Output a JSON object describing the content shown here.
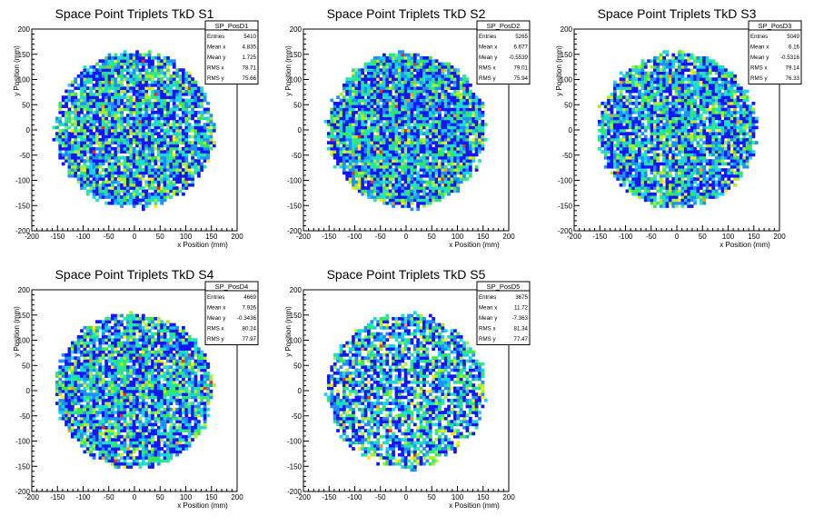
{
  "chart_data": [
    {
      "type": "heatmap",
      "title": "Space Point Triplets TkD S1",
      "xlabel": "x Position (mm)",
      "ylabel": "y Position (mm)",
      "xlim": [
        -200,
        200
      ],
      "ylim": [
        -200,
        200
      ],
      "xticks": [
        -200,
        -150,
        -100,
        -50,
        0,
        50,
        100,
        150,
        200
      ],
      "yticks": [
        -200,
        -150,
        -100,
        -50,
        0,
        50,
        100,
        150,
        200
      ],
      "bin_size": 6,
      "region_radius": 160,
      "density": 0.9,
      "stats": {
        "name": "SP_PosD1",
        "rows": [
          {
            "label": "Entries",
            "value": "5410"
          },
          {
            "label": "Mean x",
            "value": "4.835"
          },
          {
            "label": "Mean y",
            "value": "1.725"
          },
          {
            "label": "RMS x",
            "value": "78.71"
          },
          {
            "label": "RMS y",
            "value": "75.66"
          }
        ]
      }
    },
    {
      "type": "heatmap",
      "title": "Space Point Triplets TkD S2",
      "xlabel": "x Position (mm)",
      "ylabel": "y Position (mm)",
      "xlim": [
        -200,
        200
      ],
      "ylim": [
        -200,
        200
      ],
      "xticks": [
        -200,
        -150,
        -100,
        -50,
        0,
        50,
        100,
        150,
        200
      ],
      "yticks": [
        -200,
        -150,
        -100,
        -50,
        0,
        50,
        100,
        150,
        200
      ],
      "bin_size": 6,
      "region_radius": 160,
      "density": 0.95,
      "stats": {
        "name": "SP_PosD2",
        "rows": [
          {
            "label": "Entries",
            "value": "5265"
          },
          {
            "label": "Mean x",
            "value": "6.677"
          },
          {
            "label": "Mean y",
            "value": "-0.5539"
          },
          {
            "label": "RMS x",
            "value": "79.01"
          },
          {
            "label": "RMS y",
            "value": "75.94"
          }
        ]
      }
    },
    {
      "type": "heatmap",
      "title": "Space Point Triplets TkD S3",
      "xlabel": "x Position (mm)",
      "ylabel": "y Position (mm)",
      "xlim": [
        -200,
        200
      ],
      "ylim": [
        -200,
        200
      ],
      "xticks": [
        -200,
        -150,
        -100,
        -50,
        0,
        50,
        100,
        150,
        200
      ],
      "yticks": [
        -200,
        -150,
        -100,
        -50,
        0,
        50,
        100,
        150,
        200
      ],
      "bin_size": 6,
      "region_radius": 160,
      "density": 0.88,
      "stats": {
        "name": "SP_PosD3",
        "rows": [
          {
            "label": "Entries",
            "value": "5049"
          },
          {
            "label": "Mean x",
            "value": "6.16"
          },
          {
            "label": "Mean y",
            "value": "-0.5316"
          },
          {
            "label": "RMS x",
            "value": "79.14"
          },
          {
            "label": "RMS y",
            "value": "76.33"
          }
        ]
      }
    },
    {
      "type": "heatmap",
      "title": "Space Point Triplets TkD S4",
      "xlabel": "x Position (mm)",
      "ylabel": "y Position (mm)",
      "xlim": [
        -200,
        200
      ],
      "ylim": [
        -200,
        200
      ],
      "xticks": [
        -200,
        -150,
        -100,
        -50,
        0,
        50,
        100,
        150,
        200
      ],
      "yticks": [
        -200,
        -150,
        -100,
        -50,
        0,
        50,
        100,
        150,
        200
      ],
      "bin_size": 6,
      "region_radius": 160,
      "density": 0.88,
      "stats": {
        "name": "SP_PosD4",
        "rows": [
          {
            "label": "Entries",
            "value": "4669"
          },
          {
            "label": "Mean x",
            "value": "7.926"
          },
          {
            "label": "Mean y",
            "value": "-0.3436"
          },
          {
            "label": "RMS x",
            "value": "80.24"
          },
          {
            "label": "RMS y",
            "value": "77.97"
          }
        ]
      }
    },
    {
      "type": "heatmap",
      "title": "Space Point Triplets TkD S5",
      "xlabel": "x Position (mm)",
      "ylabel": "y Position (mm)",
      "xlim": [
        -200,
        200
      ],
      "ylim": [
        -200,
        200
      ],
      "xticks": [
        -200,
        -150,
        -100,
        -50,
        0,
        50,
        100,
        150,
        200
      ],
      "yticks": [
        -200,
        -150,
        -100,
        -50,
        0,
        50,
        100,
        150,
        200
      ],
      "bin_size": 6,
      "region_radius": 160,
      "density": 0.72,
      "stats": {
        "name": "SP_PosD5",
        "rows": [
          {
            "label": "Entries",
            "value": "3675"
          },
          {
            "label": "Mean x",
            "value": "11.72"
          },
          {
            "label": "Mean y",
            "value": "-7.363"
          },
          {
            "label": "RMS x",
            "value": "81.34"
          },
          {
            "label": "RMS y",
            "value": "77.47"
          }
        ]
      }
    }
  ],
  "palette": [
    "#1414ff",
    "#1f8fff",
    "#18d6e8",
    "#22e8a8",
    "#39e84e",
    "#a8ef2c",
    "#ffe81c",
    "#ff9a14",
    "#e83214"
  ]
}
